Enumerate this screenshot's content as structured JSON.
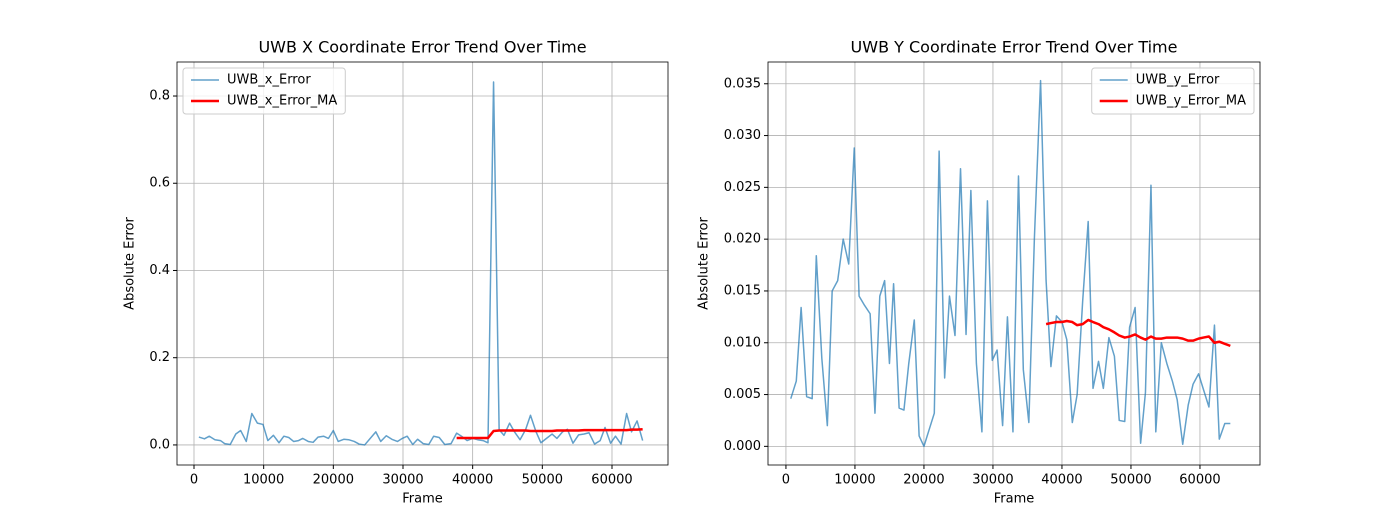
{
  "chart_data": [
    {
      "type": "line",
      "title": "UWB X Coordinate Error Trend Over Time",
      "xlabel": "Frame",
      "ylabel": "Absolute Error",
      "x": [
        700,
        1500,
        2200,
        3000,
        3800,
        4400,
        5200,
        6000,
        6700,
        7500,
        8300,
        9100,
        9900,
        10600,
        11400,
        12200,
        12900,
        13600,
        14300,
        15000,
        15600,
        16400,
        17100,
        17800,
        18600,
        19300,
        20000,
        20700,
        21500,
        22200,
        23000,
        23700,
        24500,
        25300,
        26100,
        26800,
        27600,
        28400,
        29200,
        29900,
        30600,
        31400,
        32100,
        32900,
        33700,
        34400,
        35200,
        36000,
        36900,
        37700,
        38400,
        39200,
        40000,
        40700,
        41500,
        42200,
        43000,
        43800,
        44500,
        45300,
        46000,
        46800,
        47600,
        48300,
        49100,
        49800,
        50600,
        51400,
        52100,
        52900,
        53600,
        54400,
        55200,
        56000,
        56700,
        57500,
        58300,
        59000,
        59800,
        60500,
        61300,
        62100,
        62800,
        63600,
        64400
      ],
      "series": [
        {
          "name": "UWB_x_Error",
          "color": "#1f77b4",
          "alpha": 0.7,
          "width": 1.5,
          "values": [
            0.018,
            0.014,
            0.02,
            0.012,
            0.01,
            0.003,
            0.001,
            0.025,
            0.033,
            0.008,
            0.072,
            0.05,
            0.047,
            0.01,
            0.022,
            0.005,
            0.02,
            0.017,
            0.008,
            0.01,
            0.015,
            0.008,
            0.006,
            0.018,
            0.02,
            0.015,
            0.033,
            0.008,
            0.013,
            0.012,
            0.008,
            0.002,
            0.0,
            0.015,
            0.03,
            0.008,
            0.021,
            0.013,
            0.008,
            0.015,
            0.02,
            0.001,
            0.013,
            0.003,
            0.001,
            0.02,
            0.017,
            0.001,
            0.003,
            0.027,
            0.02,
            0.01,
            0.015,
            0.012,
            0.01,
            0.005,
            0.832,
            0.035,
            0.022,
            0.05,
            0.03,
            0.012,
            0.035,
            0.068,
            0.03,
            0.005,
            0.015,
            0.025,
            0.015,
            0.03,
            0.036,
            0.004,
            0.023,
            0.025,
            0.028,
            0.002,
            0.01,
            0.04,
            0.004,
            0.02,
            0.002,
            0.072,
            0.03,
            0.055,
            0.01
          ]
        },
        {
          "name": "UWB_x_Error_MA",
          "color": "#ff0000",
          "alpha": 1,
          "width": 2.5,
          "values": [
            null,
            null,
            null,
            null,
            null,
            null,
            null,
            null,
            null,
            null,
            null,
            null,
            null,
            null,
            null,
            null,
            null,
            null,
            null,
            null,
            null,
            null,
            null,
            null,
            null,
            null,
            null,
            null,
            null,
            null,
            null,
            null,
            null,
            null,
            null,
            null,
            null,
            null,
            null,
            null,
            null,
            null,
            null,
            null,
            null,
            null,
            null,
            null,
            null,
            0.016,
            0.016,
            0.016,
            0.016,
            0.016,
            0.016,
            0.016,
            0.032,
            0.033,
            0.033,
            0.033,
            0.033,
            0.033,
            0.033,
            0.032,
            0.032,
            0.032,
            0.032,
            0.032,
            0.033,
            0.033,
            0.033,
            0.033,
            0.033,
            0.034,
            0.034,
            0.034,
            0.034,
            0.034,
            0.034,
            0.034,
            0.034,
            0.034,
            0.035,
            0.035,
            0.036
          ]
        }
      ],
      "xlim": [
        -2440,
        68040
      ],
      "xticks": [
        0,
        10000,
        20000,
        30000,
        40000,
        50000,
        60000
      ],
      "ylim": [
        -0.046,
        0.878
      ],
      "yticks": [
        {
          "value": 0,
          "label": "0.0"
        },
        0.2,
        0.4,
        0.6,
        0.8
      ],
      "grid": true,
      "legend": "upper-left"
    },
    {
      "type": "line",
      "title": "UWB Y Coordinate Error Trend Over Time",
      "xlabel": "Frame",
      "ylabel": "Absolute Error",
      "x": [
        700,
        1500,
        2200,
        3000,
        3800,
        4400,
        5200,
        6000,
        6700,
        7500,
        8300,
        9100,
        9900,
        10600,
        11400,
        12200,
        12900,
        13600,
        14300,
        15000,
        15600,
        16400,
        17100,
        17800,
        18600,
        19300,
        20000,
        20700,
        21500,
        22200,
        23000,
        23700,
        24500,
        25300,
        26100,
        26800,
        27600,
        28400,
        29200,
        29900,
        30600,
        31400,
        32100,
        32900,
        33700,
        34400,
        35200,
        36000,
        36900,
        37700,
        38400,
        39200,
        40000,
        40700,
        41500,
        42200,
        43000,
        43800,
        44500,
        45300,
        46000,
        46800,
        47600,
        48300,
        49100,
        49800,
        50600,
        51400,
        52100,
        52900,
        53600,
        54400,
        55200,
        56000,
        56700,
        57500,
        58300,
        59000,
        59800,
        60500,
        61300,
        62100,
        62800,
        63600,
        64400
      ],
      "series": [
        {
          "name": "UWB_y_Error",
          "color": "#1f77b4",
          "alpha": 0.7,
          "width": 1.5,
          "values": [
            0.0046,
            0.0063,
            0.0134,
            0.0048,
            0.0046,
            0.0184,
            0.0085,
            0.002,
            0.015,
            0.016,
            0.02,
            0.0176,
            0.0288,
            0.0145,
            0.0136,
            0.0128,
            0.0032,
            0.0145,
            0.016,
            0.008,
            0.0157,
            0.0037,
            0.0035,
            0.008,
            0.0122,
            0.001,
            0.0,
            0.0015,
            0.0032,
            0.0285,
            0.0066,
            0.0145,
            0.0107,
            0.0268,
            0.0108,
            0.0247,
            0.008,
            0.0014,
            0.0237,
            0.0083,
            0.0093,
            0.002,
            0.0125,
            0.0014,
            0.0261,
            0.0074,
            0.0023,
            0.02,
            0.0353,
            0.016,
            0.0077,
            0.0126,
            0.012,
            0.0103,
            0.0023,
            0.005,
            0.014,
            0.0217,
            0.0056,
            0.0082,
            0.0056,
            0.0105,
            0.0087,
            0.0025,
            0.0024,
            0.0115,
            0.0134,
            0.0003,
            0.0052,
            0.0252,
            0.0014,
            0.01,
            0.008,
            0.0063,
            0.0045,
            0.0002,
            0.004,
            0.006,
            0.007,
            0.0055,
            0.0038,
            0.0117,
            0.0007,
            0.0022,
            0.0022
          ]
        },
        {
          "name": "UWB_y_Error_MA",
          "color": "#ff0000",
          "alpha": 1,
          "width": 2.5,
          "values": [
            null,
            null,
            null,
            null,
            null,
            null,
            null,
            null,
            null,
            null,
            null,
            null,
            null,
            null,
            null,
            null,
            null,
            null,
            null,
            null,
            null,
            null,
            null,
            null,
            null,
            null,
            null,
            null,
            null,
            null,
            null,
            null,
            null,
            null,
            null,
            null,
            null,
            null,
            null,
            null,
            null,
            null,
            null,
            null,
            null,
            null,
            null,
            null,
            null,
            0.0118,
            0.0119,
            0.012,
            0.012,
            0.0121,
            0.012,
            0.0117,
            0.0118,
            0.0122,
            0.012,
            0.0118,
            0.0115,
            0.0113,
            0.011,
            0.0107,
            0.0105,
            0.0106,
            0.0108,
            0.0105,
            0.0103,
            0.0106,
            0.0104,
            0.0104,
            0.0105,
            0.0105,
            0.0105,
            0.0104,
            0.0102,
            0.0102,
            0.0104,
            0.0105,
            0.0106,
            0.01,
            0.0101,
            0.0099,
            0.0097
          ]
        }
      ],
      "xlim": [
        -2600,
        68700
      ],
      "xticks": [
        0,
        10000,
        20000,
        30000,
        40000,
        50000,
        60000
      ],
      "ylim": [
        -0.0018,
        0.0371
      ],
      "yticks": [
        {
          "value": 0,
          "label": "0.000"
        },
        0.005,
        {
          "value": 0.01,
          "label": "0.010"
        },
        0.015,
        {
          "value": 0.02,
          "label": "0.020"
        },
        0.025,
        {
          "value": 0.03,
          "label": "0.030"
        },
        0.035
      ],
      "grid": true,
      "legend": "upper-right"
    }
  ]
}
